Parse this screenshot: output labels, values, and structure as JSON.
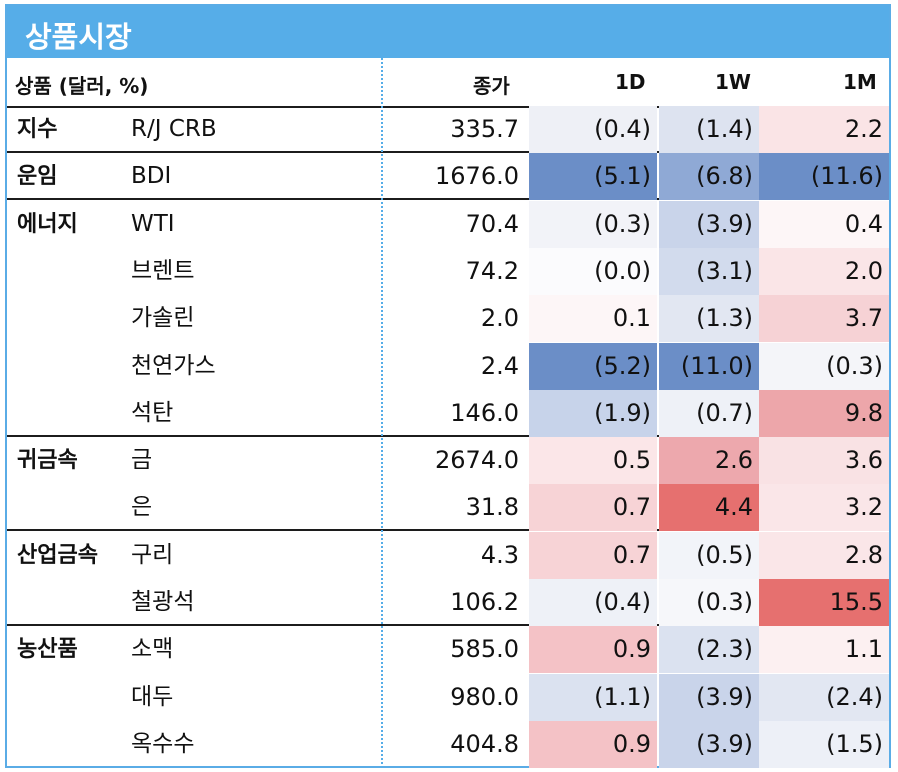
{
  "title": "상품시장",
  "headers": {
    "item": "상품 (달러, %)",
    "close": "종가",
    "d1": "1D",
    "w1": "1W",
    "m1": "1M"
  },
  "rows": [
    {
      "cat": "지수",
      "name": "R/J CRB",
      "close": "335.7",
      "d1": "(0.4)",
      "w1": "(1.4)",
      "m1": "2.2",
      "d1c": "#eef0f6",
      "w1c": "#dde3f0",
      "m1c": "#fae4e6",
      "end": true
    },
    {
      "cat": "운임",
      "name": "BDI",
      "close": "1676.0",
      "d1": "(5.1)",
      "w1": "(6.8)",
      "m1": "(11.6)",
      "d1c": "#6b8ec7",
      "w1c": "#8fa9d5",
      "m1c": "#6b8ec7",
      "end": true
    },
    {
      "cat": "에너지",
      "name": "WTI",
      "close": "70.4",
      "d1": "(0.3)",
      "w1": "(3.9)",
      "m1": "0.4",
      "d1c": "#f2f3f8",
      "w1c": "#c9d4ea",
      "m1c": "#fdf6f7",
      "end": false
    },
    {
      "cat": "",
      "name": "브렌트",
      "close": "74.2",
      "d1": "(0.0)",
      "w1": "(3.1)",
      "m1": "2.0",
      "d1c": "#fbfbfd",
      "w1c": "#d2dbed",
      "m1c": "#fae5e7",
      "end": false
    },
    {
      "cat": "",
      "name": "가솔린",
      "close": "2.0",
      "d1": "0.1",
      "w1": "(1.3)",
      "m1": "3.7",
      "d1c": "#fdf6f7",
      "w1c": "#e2e7f2",
      "m1c": "#f6d2d5",
      "end": false
    },
    {
      "cat": "",
      "name": "천연가스",
      "close": "2.4",
      "d1": "(5.2)",
      "w1": "(11.0)",
      "m1": "(0.3)",
      "d1c": "#6b8ec7",
      "w1c": "#6b8ec7",
      "m1c": "#f4f5f9",
      "end": false
    },
    {
      "cat": "",
      "name": "석탄",
      "close": "146.0",
      "d1": "(1.9)",
      "w1": "(0.7)",
      "m1": "9.8",
      "d1c": "#c7d3ea",
      "w1c": "#eef1f7",
      "m1c": "#eda6aa",
      "end": true
    },
    {
      "cat": "귀금속",
      "name": "금",
      "close": "2674.0",
      "d1": "0.5",
      "w1": "2.6",
      "m1": "3.6",
      "d1c": "#fbe6e8",
      "w1c": "#eda8ad",
      "m1c": "#f9e2e4",
      "end": false
    },
    {
      "cat": "",
      "name": "은",
      "close": "31.8",
      "d1": "0.7",
      "w1": "4.4",
      "m1": "3.2",
      "d1c": "#f7d3d6",
      "w1c": "#e6706f",
      "m1c": "#fae6e8",
      "end": true
    },
    {
      "cat": "산업금속",
      "name": "구리",
      "close": "4.3",
      "d1": "0.7",
      "w1": "(0.5)",
      "m1": "2.8",
      "d1c": "#f7d3d6",
      "w1c": "#f2f4f9",
      "m1c": "#fae6e8",
      "end": false
    },
    {
      "cat": "",
      "name": "철광석",
      "close": "106.2",
      "d1": "(0.4)",
      "w1": "(0.3)",
      "m1": "15.5",
      "d1c": "#eef1f7",
      "w1c": "#f6f7fa",
      "m1c": "#e6706f",
      "end": true
    },
    {
      "cat": "농산품",
      "name": "소맥",
      "close": "585.0",
      "d1": "0.9",
      "w1": "(2.3)",
      "m1": "1.1",
      "d1c": "#f4c2c6",
      "w1c": "#dbe2f0",
      "m1c": "#fcf0f1",
      "end": false
    },
    {
      "cat": "",
      "name": "대두",
      "close": "980.0",
      "d1": "(1.1)",
      "w1": "(3.9)",
      "m1": "(2.4)",
      "d1c": "#dbe2f0",
      "w1c": "#c9d4ea",
      "m1c": "#e2e7f2",
      "end": false
    },
    {
      "cat": "",
      "name": "옥수수",
      "close": "404.8",
      "d1": "0.9",
      "w1": "(3.9)",
      "m1": "(1.5)",
      "d1c": "#f4c2c6",
      "w1c": "#c9d4ea",
      "m1c": "#edf0f7",
      "end": false
    }
  ]
}
